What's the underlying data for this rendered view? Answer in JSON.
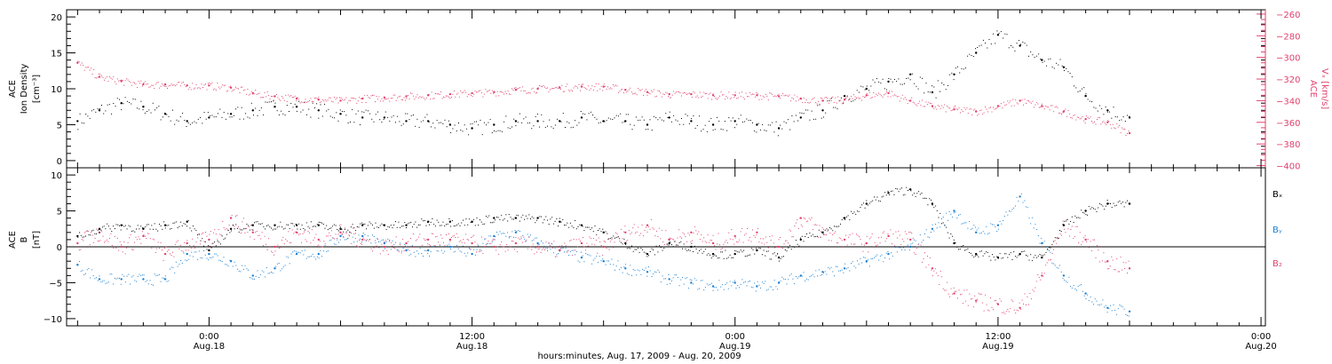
{
  "colors": {
    "black": "#000000",
    "pink": "#e0436e",
    "blue": "#1a7fd0"
  },
  "x_axis": {
    "label": "hours:minutes, Aug. 17, 2009 - Aug. 20, 2009",
    "range_hours": [
      -6.5,
      48.2
    ],
    "ticks": [
      {
        "hour": 0,
        "time": "0:00",
        "date": "Aug.18"
      },
      {
        "hour": 12,
        "time": "12:00",
        "date": "Aug.18"
      },
      {
        "hour": 24,
        "time": "0:00",
        "date": "Aug.19"
      },
      {
        "hour": 36,
        "time": "12:00",
        "date": "Aug.19"
      },
      {
        "hour": 48,
        "time": "0:00",
        "date": "Aug.20"
      }
    ]
  },
  "chart_data": [
    {
      "type": "scatter",
      "title": "",
      "ylabel_lines": [
        "ACE",
        "Ion Density",
        "[cm⁻³]"
      ],
      "ylim": [
        -1,
        21
      ],
      "yticks": [
        0,
        5,
        10,
        15,
        20
      ],
      "right_axis": {
        "ylabel_lines": [
          "ACE",
          "Vₓ [km/s]"
        ],
        "ylim": [
          -402,
          -256
        ],
        "yticks": [
          -260,
          -280,
          -300,
          -320,
          -340,
          -360,
          -380,
          -400
        ]
      },
      "series": [
        {
          "name": "",
          "axis": "left",
          "color": "#000000",
          "x": [
            -6.0,
            -5.0,
            -4.0,
            -3.0,
            -2.0,
            -1.0,
            0.0,
            1.0,
            2.0,
            3.0,
            4.0,
            5.0,
            6.0,
            7.0,
            8.0,
            9.0,
            10.0,
            11.0,
            12.0,
            13.0,
            14.0,
            15.0,
            16.0,
            17.0,
            18.0,
            19.0,
            20.0,
            21.0,
            22.0,
            23.0,
            24.0,
            25.0,
            26.0,
            27.0,
            28.0,
            29.0,
            30.0,
            31.0,
            32.0,
            33.0,
            34.0,
            35.0,
            36.0,
            37.0,
            38.0,
            39.0,
            40.0,
            41.0,
            42.0
          ],
          "y": [
            5.5,
            7.0,
            8.0,
            7.5,
            6.5,
            5.5,
            6.0,
            6.5,
            7.0,
            7.5,
            7.5,
            7.0,
            6.5,
            6.0,
            6.0,
            5.5,
            5.5,
            5.0,
            4.5,
            5.0,
            5.5,
            5.5,
            5.5,
            6.0,
            5.5,
            5.5,
            5.0,
            6.0,
            5.5,
            5.0,
            5.5,
            5.0,
            4.5,
            6.0,
            7.0,
            9.0,
            10.0,
            11.0,
            12.0,
            9.5,
            12.0,
            15.0,
            17.5,
            16.0,
            14.0,
            13.0,
            9.0,
            7.0,
            6.0
          ]
        },
        {
          "name": "",
          "axis": "right",
          "color": "#e0436e",
          "x": [
            -6.0,
            -5.0,
            -4.0,
            -3.0,
            -2.0,
            -1.0,
            0.0,
            1.0,
            2.0,
            3.0,
            4.0,
            5.0,
            6.0,
            7.0,
            8.0,
            9.0,
            10.0,
            11.0,
            12.0,
            13.0,
            14.0,
            15.0,
            16.0,
            17.0,
            18.0,
            19.0,
            20.0,
            21.0,
            22.0,
            23.0,
            24.0,
            25.0,
            26.0,
            27.0,
            28.0,
            29.0,
            30.0,
            31.0,
            32.0,
            33.0,
            34.0,
            35.0,
            36.0,
            37.0,
            38.0,
            39.0,
            40.0,
            41.0,
            42.0
          ],
          "y": [
            -305,
            -318,
            -322,
            -325,
            -325,
            -326,
            -326,
            -328,
            -333,
            -336,
            -338,
            -339,
            -340,
            -338,
            -337,
            -336,
            -335,
            -334,
            -333,
            -332,
            -330,
            -329,
            -328,
            -327,
            -327,
            -330,
            -332,
            -334,
            -334,
            -335,
            -335,
            -335,
            -336,
            -338,
            -340,
            -339,
            -335,
            -333,
            -340,
            -345,
            -348,
            -350,
            -345,
            -340,
            -345,
            -350,
            -357,
            -360,
            -370
          ]
        }
      ]
    },
    {
      "type": "scatter",
      "title": "",
      "ylabel_lines": [
        "ACE",
        "B",
        "[nT]"
      ],
      "ylim": [
        -11,
        11
      ],
      "yticks": [
        -10,
        -5,
        0,
        5,
        10
      ],
      "zero_line": true,
      "legend": {
        "placement": "right",
        "entries": [
          {
            "label": "Bₓ",
            "color": "#000000"
          },
          {
            "label": "Bᵧ",
            "color": "#1a7fd0"
          },
          {
            "label": "B₂",
            "color": "#e0436e"
          }
        ]
      },
      "series": [
        {
          "name": "Bₓ",
          "color": "#000000",
          "x": [
            -6.0,
            -5.0,
            -4.0,
            -3.0,
            -2.0,
            -1.0,
            0.0,
            1.0,
            2.0,
            3.0,
            4.0,
            5.0,
            6.0,
            7.0,
            8.0,
            9.0,
            10.0,
            11.0,
            12.0,
            13.0,
            14.0,
            15.0,
            16.0,
            17.0,
            18.0,
            19.0,
            20.0,
            21.0,
            22.0,
            23.0,
            24.0,
            25.0,
            26.0,
            27.0,
            28.0,
            29.0,
            30.0,
            31.0,
            32.0,
            33.0,
            34.0,
            35.0,
            36.0,
            37.0,
            38.0,
            39.0,
            40.0,
            41.0,
            42.0
          ],
          "y": [
            1.5,
            2.5,
            3.0,
            2.5,
            3.0,
            3.5,
            -0.5,
            2.5,
            3.0,
            3.0,
            3.0,
            3.0,
            2.5,
            3.0,
            3.0,
            3.0,
            3.5,
            3.5,
            3.5,
            4.0,
            4.0,
            4.0,
            3.5,
            3.0,
            2.0,
            0.5,
            -1.0,
            0.5,
            0.0,
            -1.0,
            -1.0,
            -0.5,
            -1.5,
            1.0,
            2.0,
            4.0,
            6.0,
            7.5,
            8.0,
            6.0,
            0.5,
            -1.0,
            -1.5,
            -1.0,
            -1.5,
            3.0,
            5.0,
            6.0,
            6.0
          ]
        },
        {
          "name": "Bᵧ",
          "color": "#1a7fd0",
          "x": [
            -6.0,
            -5.0,
            -4.0,
            -3.0,
            -2.0,
            -1.0,
            0.0,
            1.0,
            2.0,
            3.0,
            4.0,
            5.0,
            6.0,
            7.0,
            8.0,
            9.0,
            10.0,
            11.0,
            12.0,
            13.0,
            14.0,
            15.0,
            16.0,
            17.0,
            18.0,
            19.0,
            20.0,
            21.0,
            22.0,
            23.0,
            24.0,
            25.0,
            26.0,
            27.0,
            28.0,
            29.0,
            30.0,
            31.0,
            32.0,
            33.0,
            34.0,
            35.0,
            36.0,
            37.0,
            38.0,
            39.0,
            40.0,
            41.0,
            42.0
          ],
          "y": [
            -2.5,
            -4.5,
            -4.5,
            -4.5,
            -4.5,
            -1.0,
            -1.0,
            -2.0,
            -4.0,
            -3.0,
            -1.0,
            -1.0,
            1.5,
            1.5,
            0.5,
            -0.5,
            -0.5,
            0.0,
            -1.0,
            1.5,
            2.0,
            0.5,
            -0.5,
            -1.5,
            -2.0,
            -3.0,
            -3.5,
            -4.5,
            -5.0,
            -5.5,
            -5.0,
            -5.5,
            -5.0,
            -4.0,
            -3.5,
            -3.0,
            -2.0,
            -1.0,
            0.0,
            2.5,
            5.0,
            2.0,
            3.0,
            7.0,
            0.5,
            -4.0,
            -6.5,
            -8.5,
            -9.0
          ]
        },
        {
          "name": "B₂",
          "color": "#e0436e",
          "x": [
            -6.0,
            -5.0,
            -4.0,
            -3.0,
            -2.0,
            -1.0,
            0.0,
            1.0,
            2.0,
            3.0,
            4.0,
            5.0,
            6.0,
            7.0,
            8.0,
            9.0,
            10.0,
            11.0,
            12.0,
            13.0,
            14.0,
            15.0,
            16.0,
            17.0,
            18.0,
            19.0,
            20.0,
            21.0,
            22.0,
            23.0,
            24.0,
            25.0,
            26.0,
            27.0,
            28.0,
            29.0,
            30.0,
            31.0,
            32.0,
            33.0,
            34.0,
            35.0,
            36.0,
            37.0,
            38.0,
            39.0,
            40.0,
            41.0,
            42.0
          ],
          "y": [
            0.5,
            2.0,
            0.0,
            1.5,
            -1.0,
            0.5,
            1.0,
            4.0,
            2.0,
            0.0,
            2.0,
            1.0,
            2.0,
            1.0,
            0.0,
            0.5,
            1.0,
            1.0,
            0.5,
            0.0,
            0.5,
            0.0,
            -0.5,
            0.5,
            0.0,
            2.0,
            3.0,
            1.0,
            2.0,
            0.5,
            1.5,
            2.0,
            0.0,
            4.0,
            2.0,
            1.0,
            0.5,
            1.5,
            1.0,
            -3.0,
            -6.5,
            -7.5,
            -8.0,
            -8.5,
            -4.0,
            3.0,
            1.0,
            -2.0,
            -3.0
          ]
        }
      ]
    }
  ]
}
